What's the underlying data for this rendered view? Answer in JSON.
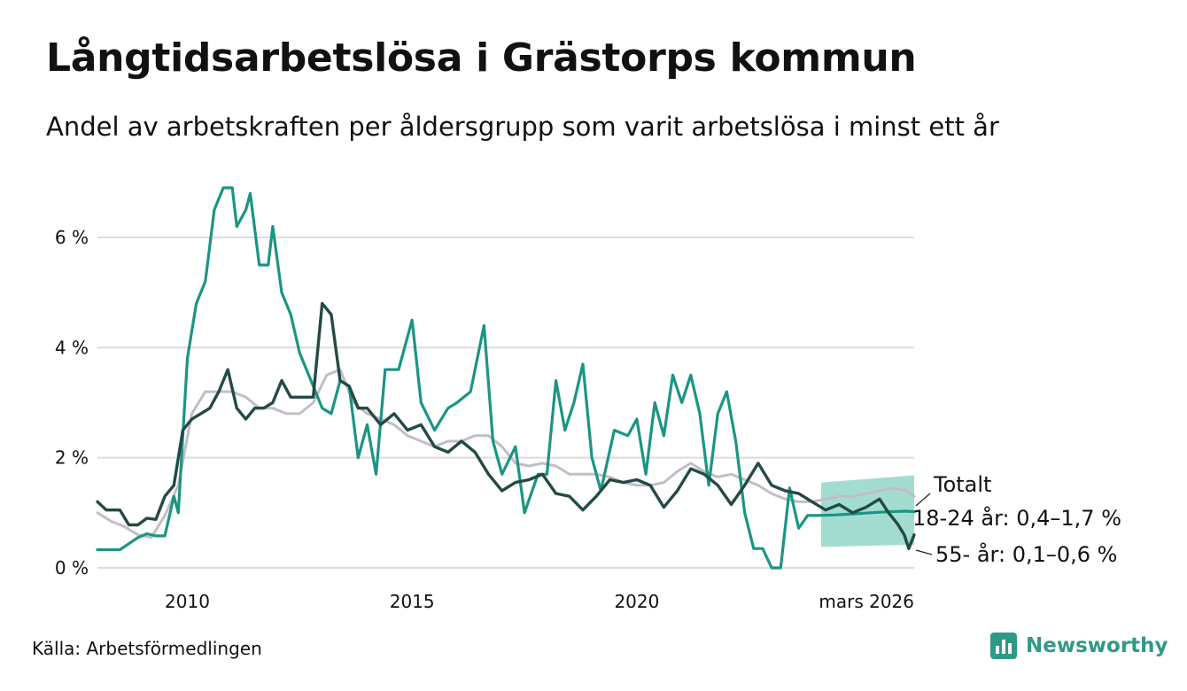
{
  "title": "Långtidsarbetslösa i Grästorps kommun",
  "subtitle": "Andel av arbetskraften per åldersgrupp som varit arbetslösa i minst ett år",
  "source": "Källa: Arbetsförmedlingen",
  "brand": "Newsworthy",
  "colors": {
    "young": "#1b9583",
    "old": "#234a44",
    "total": "#c2bdc8",
    "band": "#7ccfbf",
    "grid": "#dcdcdc",
    "text": "#111111",
    "brand": "#2e9a85"
  },
  "chart_data": {
    "type": "line",
    "title": "Långtidsarbetslösa i Grästorps kommun",
    "xlabel": "",
    "ylabel": "",
    "xlim": [
      2008.0,
      2026.17
    ],
    "ylim": [
      0,
      7
    ],
    "y_ticks": [
      0,
      2,
      4,
      6
    ],
    "y_tick_labels": [
      "0 %",
      "2 %",
      "4 %",
      "6 %"
    ],
    "x_ticks": [
      2010,
      2015,
      2020,
      2026.17
    ],
    "x_tick_labels": [
      "2010",
      "2015",
      "2020",
      "mars 2026"
    ],
    "grid": true,
    "series": [
      {
        "name": "18-24 år",
        "key": "young",
        "label": "18-24 år: 0,4–1,7 %",
        "x": [
          2008.0,
          2008.5,
          2008.9,
          2009.1,
          2009.3,
          2009.5,
          2009.7,
          2009.8,
          2010.0,
          2010.2,
          2010.4,
          2010.6,
          2010.8,
          2011.0,
          2011.1,
          2011.3,
          2011.4,
          2011.6,
          2011.8,
          2011.9,
          2012.1,
          2012.3,
          2012.5,
          2012.8,
          2013.0,
          2013.2,
          2013.4,
          2013.6,
          2013.8,
          2014.0,
          2014.2,
          2014.4,
          2014.7,
          2015.0,
          2015.2,
          2015.5,
          2015.8,
          2016.0,
          2016.3,
          2016.6,
          2016.8,
          2017.0,
          2017.3,
          2017.5,
          2017.8,
          2018.0,
          2018.2,
          2018.4,
          2018.6,
          2018.8,
          2019.0,
          2019.2,
          2019.5,
          2019.8,
          2020.0,
          2020.2,
          2020.4,
          2020.6,
          2020.8,
          2021.0,
          2021.2,
          2021.4,
          2021.6,
          2021.8,
          2022.0,
          2022.2,
          2022.4,
          2022.6,
          2022.8,
          2023.0,
          2023.2,
          2023.4,
          2023.6,
          2023.8,
          2024.0,
          2024.4,
          2024.8,
          2025.2,
          2025.6,
          2026.0,
          2026.17
        ],
        "values": [
          0.33,
          0.33,
          0.55,
          0.62,
          0.58,
          0.58,
          1.3,
          1.0,
          3.8,
          4.8,
          5.2,
          6.5,
          6.9,
          6.9,
          6.2,
          6.5,
          6.8,
          5.5,
          5.5,
          6.2,
          5.0,
          4.6,
          3.9,
          3.3,
          2.9,
          2.8,
          3.4,
          3.3,
          2.0,
          2.6,
          1.7,
          3.6,
          3.6,
          4.5,
          3.0,
          2.5,
          2.9,
          3.0,
          3.2,
          4.4,
          2.3,
          1.7,
          2.2,
          1.0,
          1.7,
          1.7,
          3.4,
          2.5,
          3.0,
          3.7,
          2.0,
          1.4,
          2.5,
          2.4,
          2.7,
          1.7,
          3.0,
          2.4,
          3.5,
          3.0,
          3.5,
          2.8,
          1.5,
          2.8,
          3.2,
          2.3,
          1.0,
          0.35,
          0.35,
          0.0,
          0.0,
          1.45,
          0.72,
          0.95,
          0.95,
          0.96,
          0.98,
          1.0,
          1.02,
          1.03,
          1.02
        ],
        "band_x": [
          2024.1,
          2026.17
        ],
        "band_low": [
          0.38,
          0.42
        ],
        "band_high": [
          1.55,
          1.68
        ]
      },
      {
        "name": "55- år",
        "key": "old",
        "label": "55- år: 0,1–0,6 %",
        "x": [
          2008.0,
          2008.2,
          2008.5,
          2008.7,
          2008.9,
          2009.1,
          2009.3,
          2009.5,
          2009.7,
          2009.9,
          2010.1,
          2010.3,
          2010.5,
          2010.7,
          2010.9,
          2011.1,
          2011.3,
          2011.5,
          2011.7,
          2011.9,
          2012.1,
          2012.3,
          2012.5,
          2012.8,
          2013.0,
          2013.2,
          2013.4,
          2013.6,
          2013.8,
          2014.0,
          2014.3,
          2014.6,
          2014.9,
          2015.2,
          2015.5,
          2015.8,
          2016.1,
          2016.4,
          2016.7,
          2017.0,
          2017.3,
          2017.6,
          2017.9,
          2018.2,
          2018.5,
          2018.8,
          2019.1,
          2019.4,
          2019.7,
          2020.0,
          2020.3,
          2020.6,
          2020.9,
          2021.2,
          2021.5,
          2021.8,
          2022.1,
          2022.4,
          2022.7,
          2023.0,
          2023.3,
          2023.6,
          2023.9,
          2024.2,
          2024.5,
          2024.8,
          2025.1,
          2025.4,
          2025.6,
          2025.8,
          2025.95,
          2026.05,
          2026.17
        ],
        "values": [
          1.2,
          1.05,
          1.05,
          0.78,
          0.78,
          0.9,
          0.88,
          1.3,
          1.5,
          2.5,
          2.7,
          2.8,
          2.9,
          3.2,
          3.6,
          2.9,
          2.7,
          2.9,
          2.9,
          3.0,
          3.4,
          3.1,
          3.1,
          3.1,
          4.8,
          4.6,
          3.4,
          3.3,
          2.9,
          2.9,
          2.6,
          2.8,
          2.5,
          2.6,
          2.2,
          2.1,
          2.3,
          2.1,
          1.7,
          1.4,
          1.55,
          1.6,
          1.7,
          1.35,
          1.3,
          1.05,
          1.3,
          1.6,
          1.55,
          1.6,
          1.5,
          1.1,
          1.4,
          1.8,
          1.7,
          1.5,
          1.15,
          1.5,
          1.9,
          1.5,
          1.4,
          1.35,
          1.2,
          1.05,
          1.15,
          1.0,
          1.1,
          1.25,
          1.0,
          0.8,
          0.6,
          0.35,
          0.6
        ]
      },
      {
        "name": "Totalt",
        "key": "total",
        "label": "Totalt",
        "x": [
          2008.0,
          2008.3,
          2008.6,
          2008.9,
          2009.2,
          2009.5,
          2009.8,
          2010.1,
          2010.4,
          2010.7,
          2011.0,
          2011.3,
          2011.6,
          2011.9,
          2012.2,
          2012.5,
          2012.8,
          2013.1,
          2013.4,
          2013.7,
          2014.0,
          2014.3,
          2014.6,
          2014.9,
          2015.2,
          2015.5,
          2015.8,
          2016.1,
          2016.4,
          2016.7,
          2017.0,
          2017.3,
          2017.6,
          2017.9,
          2018.2,
          2018.5,
          2018.8,
          2019.1,
          2019.4,
          2019.7,
          2020.0,
          2020.3,
          2020.6,
          2020.9,
          2021.2,
          2021.5,
          2021.8,
          2022.1,
          2022.4,
          2022.7,
          2023.0,
          2023.3,
          2023.6,
          2023.9,
          2024.2,
          2024.5,
          2024.8,
          2025.1,
          2025.4,
          2025.7,
          2026.0,
          2026.17
        ],
        "values": [
          1.0,
          0.85,
          0.75,
          0.6,
          0.55,
          0.95,
          1.5,
          2.8,
          3.2,
          3.2,
          3.2,
          3.1,
          2.9,
          2.9,
          2.8,
          2.8,
          3.0,
          3.5,
          3.6,
          3.0,
          2.8,
          2.7,
          2.6,
          2.4,
          2.3,
          2.2,
          2.3,
          2.3,
          2.4,
          2.4,
          2.2,
          1.9,
          1.85,
          1.9,
          1.85,
          1.7,
          1.7,
          1.7,
          1.65,
          1.55,
          1.5,
          1.5,
          1.55,
          1.75,
          1.9,
          1.75,
          1.65,
          1.7,
          1.6,
          1.5,
          1.35,
          1.25,
          1.2,
          1.2,
          1.25,
          1.3,
          1.3,
          1.35,
          1.4,
          1.45,
          1.4,
          1.3
        ]
      }
    ]
  }
}
